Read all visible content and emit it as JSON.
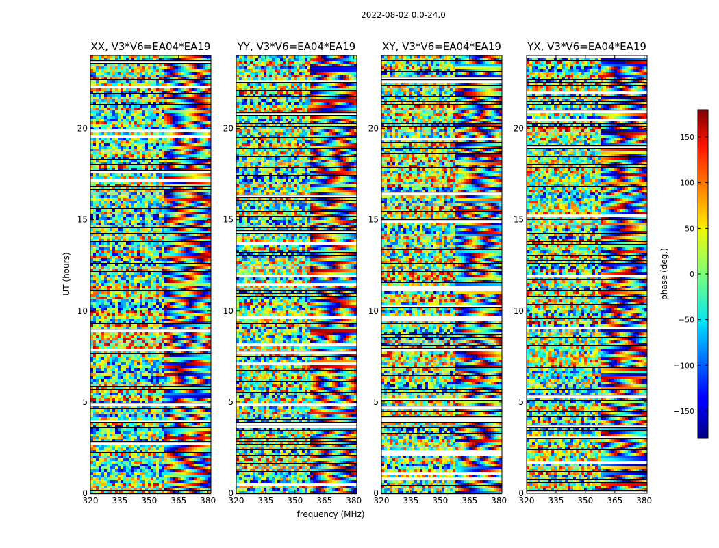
{
  "figure": {
    "title": "2022-08-02 0.0-24.0",
    "xlabel": "frequency (MHz)",
    "ylabel": "UT (hours)"
  },
  "colorbar": {
    "label": "phase (deg.)",
    "range": [
      -180,
      180
    ],
    "ticks": [
      150,
      100,
      50,
      0,
      -50,
      -100,
      -150
    ],
    "tick_labels": [
      "150",
      "100",
      "50",
      "0",
      "−50",
      "−100",
      "−150"
    ],
    "colormap": "jet"
  },
  "chart_data": [
    {
      "type": "heatmap",
      "title": "XX, V3*V6=EA04*EA19",
      "xlim": [
        320,
        381.5
      ],
      "ylim": [
        0,
        24
      ],
      "xticks": [
        320,
        335,
        350,
        365,
        380
      ],
      "yticks": [
        0,
        5,
        10,
        15,
        20
      ]
    },
    {
      "type": "heatmap",
      "title": "YY, V3*V6=EA04*EA19",
      "xlim": [
        320,
        381.5
      ],
      "ylim": [
        0,
        24
      ],
      "xticks": [
        320,
        335,
        350,
        365,
        380
      ],
      "yticks": [
        0,
        5,
        10,
        15,
        20
      ]
    },
    {
      "type": "heatmap",
      "title": "XY, V3*V6=EA04*EA19",
      "xlim": [
        320,
        381.5
      ],
      "ylim": [
        0,
        24
      ],
      "xticks": [
        320,
        335,
        350,
        365,
        380
      ],
      "yticks": [
        0,
        5,
        10,
        15,
        20
      ]
    },
    {
      "type": "heatmap",
      "title": "YX, V3*V6=EA04*EA19",
      "xlim": [
        320,
        381.5
      ],
      "ylim": [
        0,
        24
      ],
      "xticks": [
        320,
        335,
        350,
        365,
        380
      ],
      "yticks": [
        0,
        5,
        10,
        15,
        20
      ]
    }
  ]
}
